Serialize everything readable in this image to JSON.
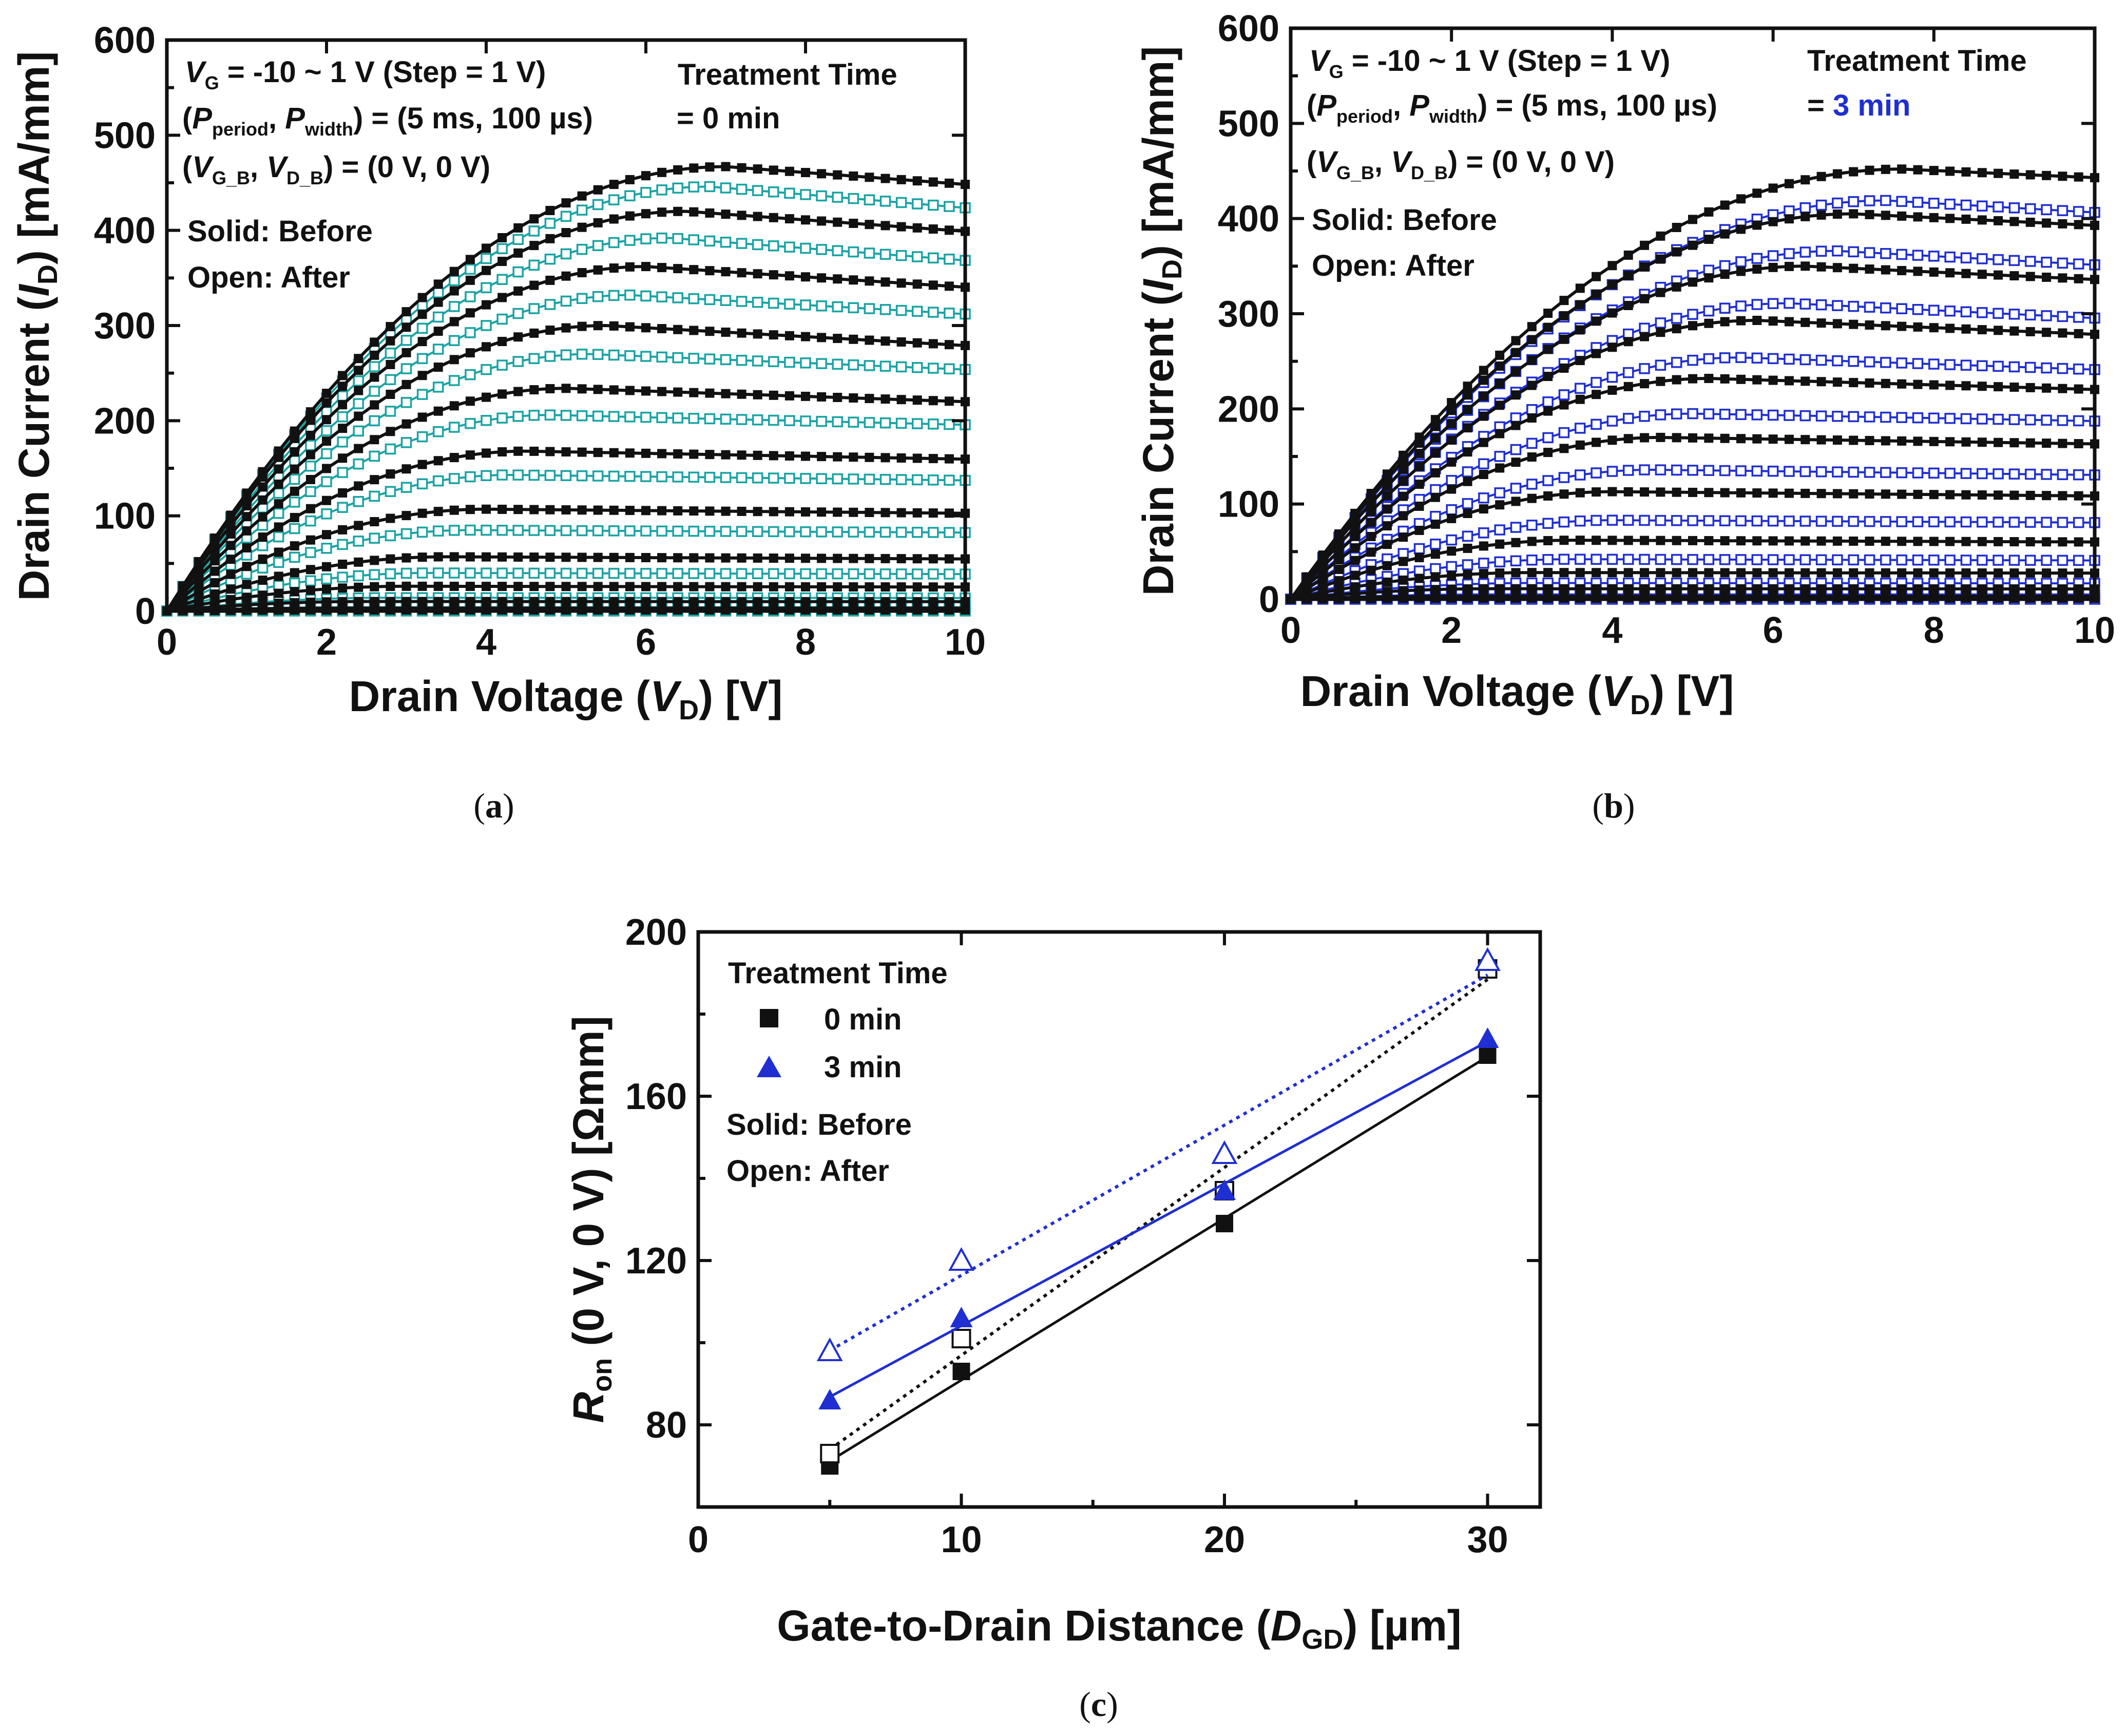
{
  "panels": {
    "a": {
      "label": "a",
      "ylabel": {
        "pre": "Drain Current (",
        "sym": "I",
        "sub": "D",
        "post": ") [mA/mm]"
      },
      "xlabel": {
        "pre": "Drain Voltage (",
        "sym": "V",
        "sub": "D",
        "post": ") [V]"
      },
      "notes": {
        "line1": {
          "sym": "V",
          "sub": "G",
          "text": " = -10 ~ 1 V (Step = 1 V)"
        },
        "line2": {
          "open": "(",
          "sym1": "P",
          "sub1": "period",
          "mid": ", ",
          "sym2": "P",
          "sub2": "width",
          "text": ") = (5 ms, 100 µs)"
        },
        "line3": {
          "open": "(",
          "sym1": "V",
          "sub1": "G_B",
          "mid": ", ",
          "sym2": "V",
          "sub2": "D_B",
          "text": ") = (0 V, 0 V)"
        },
        "solid": "Solid: Before",
        "open": "Open: After",
        "treatment_title": "Treatment Time",
        "treatment_value": "= 0 min"
      }
    },
    "b": {
      "label": "b",
      "ylabel": {
        "pre": "Drain Current (",
        "sym": "I",
        "sub": "D",
        "post": ") [mA/mm]"
      },
      "xlabel": {
        "pre": "Drain Voltage (",
        "sym": "V",
        "sub": "D",
        "post": ") [V]"
      },
      "notes": {
        "line1": {
          "sym": "V",
          "sub": "G",
          "text": " = -10 ~ 1 V (Step = 1 V)"
        },
        "line2": {
          "open": "(",
          "sym1": "P",
          "sub1": "period",
          "mid": ", ",
          "sym2": "P",
          "sub2": "width",
          "text": ") = (5 ms, 100 µs)"
        },
        "line3": {
          "open": "(",
          "sym1": "V",
          "sub1": "G_B",
          "mid": ", ",
          "sym2": "V",
          "sub2": "D_B",
          "text": ") = (0 V, 0 V)"
        },
        "solid": "Solid: Before",
        "open": "Open: After",
        "treatment_title": "Treatment Time",
        "treatment_eq": "=",
        "treatment_value": "3 min"
      }
    },
    "c": {
      "label": "c",
      "ylabel": {
        "sym": "R",
        "sub": "on",
        "post": " (0 V, 0 V) [Ωmm]"
      },
      "xlabel": {
        "pre": "Gate-to-Drain Distance (",
        "sym": "D",
        "sub": "GD",
        "post": ") [µm]"
      },
      "notes": {
        "legend_title": "Treatment Time",
        "legend_0": "0 min",
        "legend_3": "3 min",
        "solid": "Solid: Before",
        "open": "Open: After"
      }
    }
  },
  "colors": {
    "black": "#111111",
    "teal": "#1aa3a3",
    "blue": "#1f2fd1"
  },
  "chart_data": [
    {
      "type": "line",
      "panel": "a",
      "title": "",
      "xlabel": "Drain Voltage (VD) [V]",
      "ylabel": "Drain Current (ID) [mA/mm]",
      "xlim": [
        0,
        10
      ],
      "ylim": [
        0,
        600
      ],
      "xticks": [
        0,
        2,
        4,
        6,
        8,
        10
      ],
      "yticks": [
        0,
        100,
        200,
        300,
        400,
        500,
        600
      ],
      "gate_voltages": [
        1,
        0,
        -1,
        -2,
        -3,
        -4,
        -5,
        -6,
        -7,
        -8,
        -9,
        -10
      ],
      "series": [
        {
          "name": "Before (solid)",
          "color": "#111111",
          "marker": "square-filled",
          "isat": [
            467,
            420,
            362,
            300,
            234,
            168,
            107,
            57,
            26,
            10,
            3,
            1
          ],
          "vpeak": [
            7.0,
            6.5,
            6.0,
            5.5,
            5.0,
            4.5,
            4.0,
            3.5,
            3.0,
            2.5,
            2.2,
            2.0
          ],
          "droop": [
            0.04,
            0.05,
            0.06,
            0.07,
            0.06,
            0.05,
            0.04,
            0.04,
            0.03,
            0.02,
            0.0,
            0.0
          ]
        },
        {
          "name": "After (open)",
          "color": "#1aa3a3",
          "marker": "square-open",
          "isat": [
            446,
            392,
            332,
            270,
            206,
            143,
            85,
            40,
            14,
            4,
            1,
            0
          ],
          "vpeak": [
            6.8,
            6.3,
            5.8,
            5.3,
            4.8,
            4.3,
            3.8,
            3.3,
            2.8,
            2.4,
            2.0,
            2.0
          ],
          "droop": [
            0.05,
            0.06,
            0.06,
            0.06,
            0.05,
            0.04,
            0.03,
            0.03,
            0.02,
            0.01,
            0.0,
            0.0
          ]
        }
      ]
    },
    {
      "type": "line",
      "panel": "b",
      "title": "",
      "xlabel": "Drain Voltage (VD) [V]",
      "ylabel": "Drain Current (ID) [mA/mm]",
      "xlim": [
        0,
        10
      ],
      "ylim": [
        0,
        600
      ],
      "xticks": [
        0,
        2,
        4,
        6,
        8,
        10
      ],
      "yticks": [
        0,
        100,
        200,
        300,
        400,
        500,
        600
      ],
      "gate_voltages": [
        1,
        0,
        -1,
        -2,
        -3,
        -4,
        -5,
        -6,
        -7,
        -8,
        -9,
        -10
      ],
      "series": [
        {
          "name": "Before (solid)",
          "color": "#111111",
          "marker": "square-filled",
          "isat": [
            452,
            405,
            350,
            293,
            232,
            170,
            113,
            62,
            28,
            11,
            3,
            1
          ],
          "vpeak": [
            7.6,
            7.0,
            6.4,
            5.8,
            5.2,
            4.6,
            4.0,
            3.5,
            3.0,
            2.5,
            2.2,
            2.0
          ],
          "droop": [
            0.02,
            0.03,
            0.04,
            0.05,
            0.05,
            0.04,
            0.04,
            0.03,
            0.02,
            0.02,
            0.0,
            0.0
          ]
        },
        {
          "name": "After (open)",
          "color": "#1f2fd1",
          "marker": "square-open",
          "isat": [
            419,
            366,
            311,
            254,
            195,
            136,
            83,
            42,
            17,
            5,
            1,
            0
          ],
          "vpeak": [
            7.4,
            6.8,
            6.2,
            5.6,
            5.0,
            4.5,
            4.0,
            3.5,
            3.0,
            2.5,
            2.2,
            2.0
          ],
          "droop": [
            0.03,
            0.04,
            0.05,
            0.05,
            0.04,
            0.04,
            0.03,
            0.03,
            0.02,
            0.01,
            0.0,
            0.0
          ]
        }
      ]
    },
    {
      "type": "scatter",
      "panel": "c",
      "title": "",
      "xlabel": "Gate-to-Drain Distance (DGD) [µm]",
      "ylabel": "Ron (0 V, 0 V) [Ωmm]",
      "xlim": [
        0,
        32
      ],
      "ylim": [
        60,
        200
      ],
      "xticks": [
        0,
        10,
        20,
        30
      ],
      "yticks": [
        80,
        120,
        160,
        200
      ],
      "x": [
        5,
        10,
        20,
        30
      ],
      "series": [
        {
          "name": "0 min, Before",
          "color": "#111111",
          "marker": "square",
          "filled": true,
          "line": "solid",
          "values": [
            70,
            93,
            129,
            170
          ]
        },
        {
          "name": "0 min, After",
          "color": "#111111",
          "marker": "square",
          "filled": false,
          "line": "dotted",
          "values": [
            73,
            101,
            137,
            191
          ]
        },
        {
          "name": "3 min, Before",
          "color": "#1f2fd1",
          "marker": "triangle",
          "filled": true,
          "line": "solid",
          "values": [
            86,
            106,
            137,
            174
          ]
        },
        {
          "name": "3 min, After",
          "color": "#1f2fd1",
          "marker": "triangle",
          "filled": false,
          "line": "dotted",
          "values": [
            98,
            120,
            146,
            193
          ]
        }
      ]
    }
  ]
}
